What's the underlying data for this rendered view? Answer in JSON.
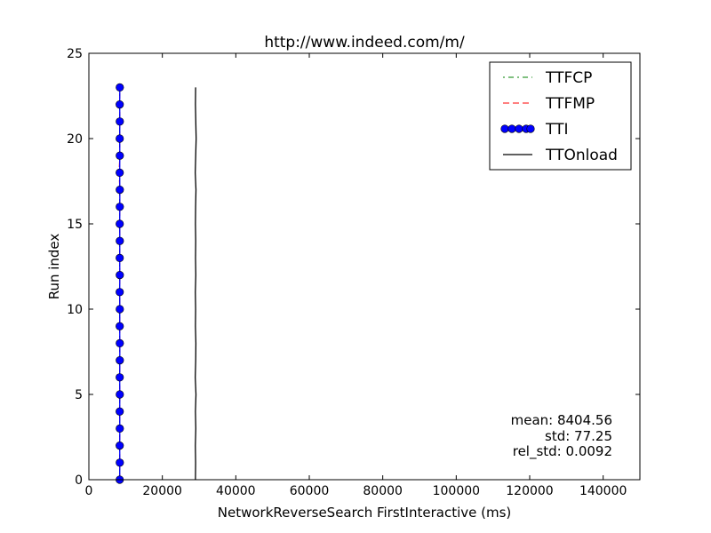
{
  "chart_data": {
    "type": "line",
    "title": "http://www.indeed.com/m/",
    "xlabel": "NetworkReverseSearch FirstInteractive (ms)",
    "ylabel": "Run index",
    "xlim": [
      0,
      150000
    ],
    "ylim": [
      0,
      25
    ],
    "x_ticks": [
      0,
      20000,
      40000,
      60000,
      80000,
      100000,
      120000,
      140000
    ],
    "y_ticks": [
      0,
      5,
      10,
      15,
      20,
      25
    ],
    "grid": false,
    "legend_position": "top-right",
    "series": [
      {
        "name": "TTFCP",
        "color": "#008000",
        "style": "dashdot",
        "y": [
          0,
          1,
          2,
          3,
          4,
          5,
          6,
          7,
          8,
          9,
          10,
          11,
          12,
          13,
          14,
          15,
          16,
          17,
          18,
          19,
          20,
          21,
          22,
          23
        ],
        "x": [
          8350,
          8360,
          8345,
          8370,
          8355,
          8380,
          8340,
          8365,
          8375,
          8350,
          8360,
          8345,
          8370,
          8355,
          8365,
          8350,
          8360,
          8380,
          8340,
          8365,
          8355,
          8370,
          8345,
          8360
        ]
      },
      {
        "name": "TTFMP",
        "color": "#ff0000",
        "style": "dashed",
        "y": [
          0,
          1,
          2,
          3,
          4,
          5,
          6,
          7,
          8,
          9,
          10,
          11,
          12,
          13,
          14,
          15,
          16,
          17,
          18,
          19,
          20,
          21,
          22,
          23
        ],
        "x": [
          8400,
          8410,
          8395,
          8420,
          8405,
          8430,
          8390,
          8415,
          8425,
          8400,
          8410,
          8395,
          8420,
          8405,
          8415,
          8400,
          8410,
          8430,
          8200,
          8415,
          8405,
          8420,
          8395,
          8410
        ]
      },
      {
        "name": "TTI",
        "color": "#0000ff",
        "style": "solid-circle-markers",
        "y": [
          0,
          1,
          2,
          3,
          4,
          5,
          6,
          7,
          8,
          9,
          10,
          11,
          12,
          13,
          14,
          15,
          16,
          17,
          18,
          19,
          20,
          21,
          22,
          23
        ],
        "x": [
          8405,
          8410,
          8400,
          8420,
          8405,
          8430,
          8395,
          8415,
          8425,
          8400,
          8410,
          8395,
          8420,
          8405,
          8415,
          8400,
          8410,
          8430,
          8395,
          8415,
          8405,
          8420,
          8395,
          8410
        ]
      },
      {
        "name": "TTOnload",
        "color": "#000000",
        "style": "solid",
        "y": [
          0,
          1,
          2,
          3,
          4,
          5,
          6,
          7,
          8,
          9,
          10,
          11,
          12,
          13,
          14,
          15,
          16,
          17,
          18,
          19,
          20,
          21,
          22,
          23
        ],
        "x": [
          29000,
          29050,
          28980,
          29100,
          29020,
          29150,
          28950,
          29080,
          29120,
          29000,
          29050,
          28990,
          29100,
          29030,
          29070,
          29010,
          29060,
          29150,
          28970,
          29080,
          29200,
          29100,
          29000,
          29050
        ]
      }
    ],
    "annotations": [
      "mean: 8404.56",
      "std: 77.25",
      "rel_std: 0.0092"
    ]
  }
}
